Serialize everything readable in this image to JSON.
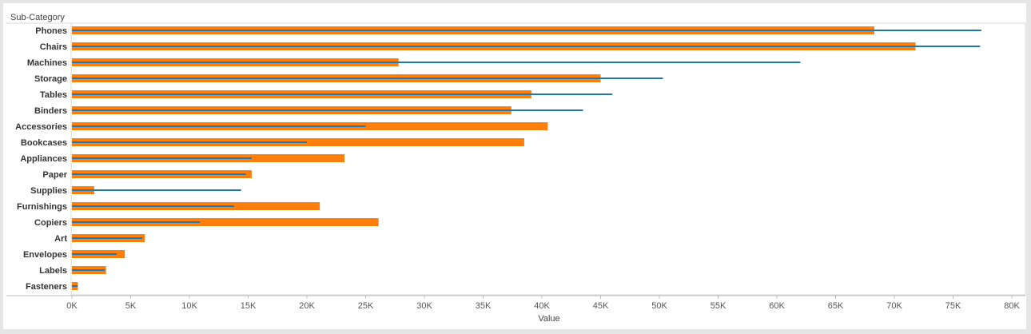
{
  "chart_data": {
    "type": "bar",
    "row_header": "Sub-Category",
    "xlabel": "Value",
    "xlim": [
      0,
      80000
    ],
    "x_ticks": [
      0,
      5000,
      10000,
      15000,
      20000,
      25000,
      30000,
      35000,
      40000,
      45000,
      50000,
      55000,
      60000,
      65000,
      70000,
      75000,
      80000
    ],
    "x_tick_labels": [
      "0K",
      "5K",
      "10K",
      "15K",
      "20K",
      "25K",
      "30K",
      "35K",
      "40K",
      "45K",
      "50K",
      "55K",
      "60K",
      "65K",
      "70K",
      "75K",
      "80K"
    ],
    "categories": [
      "Phones",
      "Chairs",
      "Machines",
      "Storage",
      "Tables",
      "Binders",
      "Accessories",
      "Bookcases",
      "Appliances",
      "Paper",
      "Supplies",
      "Furnishings",
      "Copiers",
      "Art",
      "Envelopes",
      "Labels",
      "Fasteners"
    ],
    "series": [
      {
        "mark": "bar",
        "color": "#ff7f0e",
        "values": [
          68300,
          71800,
          27800,
          45000,
          39100,
          37400,
          40500,
          38500,
          23200,
          15300,
          1900,
          21100,
          26100,
          6200,
          4500,
          2900,
          500
        ]
      },
      {
        "mark": "line",
        "color": "#1f77b4",
        "values": [
          77400,
          77300,
          62000,
          50300,
          46000,
          43500,
          25000,
          20000,
          15300,
          14800,
          14400,
          13800,
          10900,
          6000,
          3800,
          2800,
          500
        ]
      }
    ],
    "grid": false,
    "legend": "none"
  }
}
